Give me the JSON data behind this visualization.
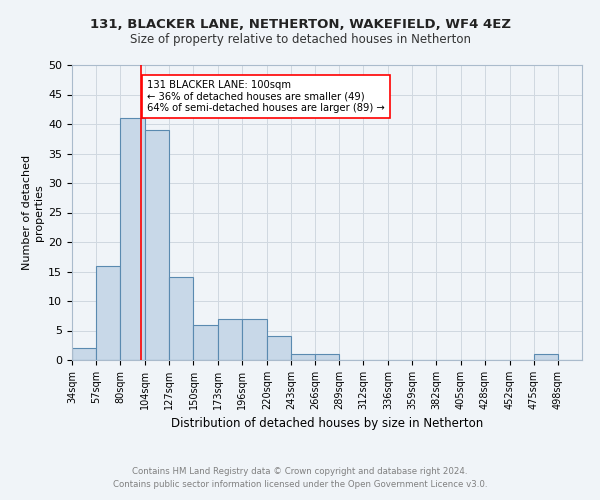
{
  "title": "131, BLACKER LANE, NETHERTON, WAKEFIELD, WF4 4EZ",
  "subtitle": "Size of property relative to detached houses in Netherton",
  "xlabel": "Distribution of detached houses by size in Netherton",
  "ylabel": "Number of detached\nproperties",
  "footer_line1": "Contains HM Land Registry data © Crown copyright and database right 2024.",
  "footer_line2": "Contains public sector information licensed under the Open Government Licence v3.0.",
  "bin_labels": [
    "34sqm",
    "57sqm",
    "80sqm",
    "104sqm",
    "127sqm",
    "150sqm",
    "173sqm",
    "196sqm",
    "220sqm",
    "243sqm",
    "266sqm",
    "289sqm",
    "312sqm",
    "336sqm",
    "359sqm",
    "382sqm",
    "405sqm",
    "428sqm",
    "452sqm",
    "475sqm",
    "498sqm"
  ],
  "bar_values": [
    2,
    16,
    41,
    39,
    14,
    6,
    7,
    7,
    4,
    1,
    1,
    0,
    0,
    0,
    0,
    0,
    0,
    0,
    0,
    1,
    0
  ],
  "bar_color": "#c8d8e8",
  "bar_edge_color": "#5a8ab0",
  "vline_x": 100,
  "vline_color": "red",
  "annotation_text": "131 BLACKER LANE: 100sqm\n← 36% of detached houses are smaller (49)\n64% of semi-detached houses are larger (89) →",
  "annotation_box_color": "white",
  "annotation_box_edge": "red",
  "ylim": [
    0,
    50
  ],
  "yticks": [
    0,
    5,
    10,
    15,
    20,
    25,
    30,
    35,
    40,
    45,
    50
  ],
  "bin_edges": [
    34,
    57,
    80,
    104,
    127,
    150,
    173,
    196,
    220,
    243,
    266,
    289,
    312,
    336,
    359,
    382,
    405,
    428,
    452,
    475,
    498,
    521
  ],
  "grid_color": "#d0d8e0",
  "background_color": "#f0f4f8",
  "title_fontsize": 9.5,
  "subtitle_fontsize": 8.5
}
